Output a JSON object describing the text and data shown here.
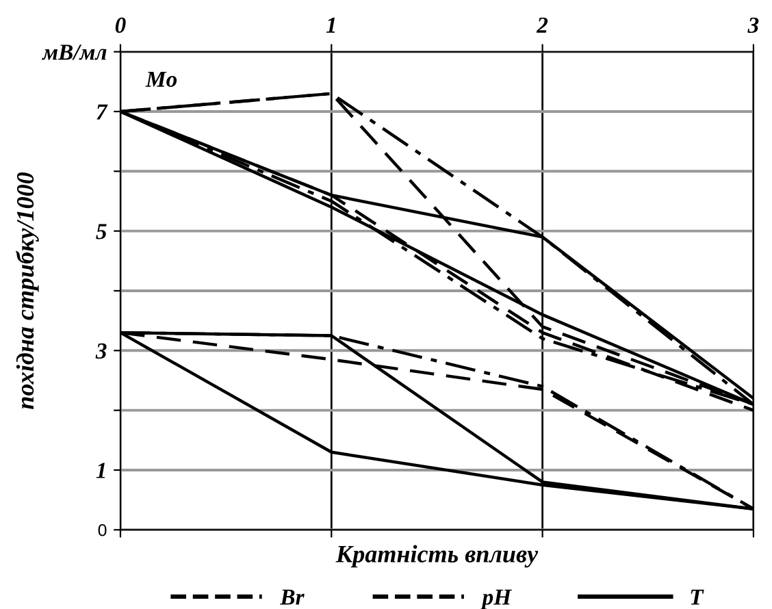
{
  "chart_data": {
    "type": "line",
    "xlabel": "Кратність впливу",
    "ylabel": "похідна стрибку/1000",
    "annotations": [
      "Mo"
    ],
    "x": [
      0,
      1,
      2,
      3
    ],
    "xlim": [
      0,
      3
    ],
    "xticks": [
      0,
      1,
      2,
      3
    ],
    "ylim": [
      0,
      8
    ],
    "yticks": [
      0,
      1,
      {
        "value": 2,
        "label": null
      },
      3,
      {
        "value": 4,
        "label": null
      },
      5,
      {
        "value": 6,
        "label": null
      },
      7,
      {
        "value": 8,
        "label": "мВ/мл"
      }
    ],
    "grid": true,
    "legend": "bottom",
    "marker": "none",
    "series": [
      {
        "name": "Br",
        "color": "#000000",
        "line_style": "dashed",
        "values": [
          7.0,
          7.3,
          3.4,
          2.1
        ]
      },
      {
        "name": "pH",
        "color": "#000000",
        "line_style": "dashdot",
        "values": [
          7.0,
          7.3,
          4.9,
          2.1
        ]
      },
      {
        "name": "T",
        "color": "#000000",
        "line_style": "solid",
        "values": [
          7.0,
          5.6,
          4.9,
          2.2
        ]
      },
      {
        "color": "#000000",
        "line_style": "dashed",
        "values": [
          7.0,
          5.6,
          3.3,
          2.0
        ]
      },
      {
        "color": "#000000",
        "line_style": "dashdot",
        "values": [
          7.0,
          5.5,
          3.2,
          2.1
        ]
      },
      {
        "color": "#000000",
        "line_style": "solid",
        "values": [
          7.0,
          5.4,
          3.6,
          2.1
        ]
      },
      {
        "color": "#000000",
        "line_style": "dashed",
        "values": [
          3.3,
          2.85,
          2.35,
          0.35
        ]
      },
      {
        "color": "#000000",
        "line_style": "dashdot",
        "values": [
          3.3,
          3.25,
          2.4,
          0.35
        ]
      },
      {
        "color": "#000000",
        "line_style": "solid",
        "values": [
          3.3,
          3.25,
          0.8,
          0.35
        ]
      },
      {
        "color": "#000000",
        "line_style": "solid",
        "values": [
          3.3,
          1.3,
          0.75,
          0.35
        ]
      }
    ]
  }
}
